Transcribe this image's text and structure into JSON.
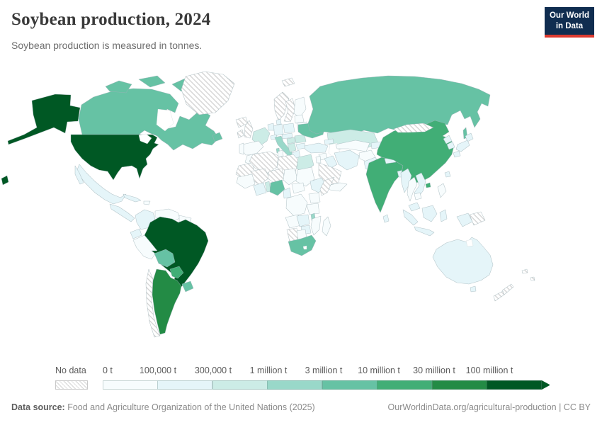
{
  "header": {
    "title": "Soybean production, 2024",
    "subtitle": "Soybean production is measured in tonnes."
  },
  "logo": {
    "line1": "Our World",
    "line2": "in Data",
    "bg": "#102d50",
    "accent": "#dc3a2f"
  },
  "legend": {
    "no_data_label": "No data",
    "stops": [
      "0 t",
      "100,000 t",
      "300,000 t",
      "1 million t",
      "3 million t",
      "10 million t",
      "30 million t",
      "100 million t"
    ],
    "palette": [
      "#f7fcfd",
      "#e5f5f9",
      "#ccece6",
      "#99d8c9",
      "#66c2a4",
      "#41ae76",
      "#238b45",
      "#005824"
    ]
  },
  "footer": {
    "source_label": "Data source:",
    "source_text": " Food and Agriculture Organization of the United Nations (2025)",
    "right_text": "OurWorldinData.org/agricultural-production | CC BY"
  },
  "chart_data": {
    "type": "heatmap",
    "subtype": "world-choropleth",
    "title": "Soybean production, 2024",
    "unit": "tonnes",
    "legend_position": "bottom",
    "bins": [
      "0 t–100,000 t",
      "100,000 t–300,000 t",
      "300,000 t–1 million t",
      "1–3 million t",
      "3–10 million t",
      "10–30 million t",
      "30–100 million t",
      "100 million t+",
      "No data"
    ],
    "countries_by_bin": {
      "100 million t+": [
        "United States",
        "Brazil"
      ],
      "30–100 million t": [
        "Argentina"
      ],
      "10–30 million t": [
        "China",
        "India",
        "Paraguay"
      ],
      "3–10 million t": [
        "Canada",
        "Russia",
        "Ukraine",
        "Bolivia",
        "Uruguay",
        "Nigeria",
        "South Africa"
      ],
      "1–3 million t": [
        "Italy",
        "Malawi"
      ],
      "300,000 t–1 million t": [
        "France",
        "Kazakhstan",
        "Egypt",
        "Romania",
        "Hungary",
        "Serbia",
        "Benin",
        "Togo"
      ],
      "100,000 t–300,000 t": [
        "Mexico",
        "Japan",
        "Turkey",
        "Iran",
        "Colombia",
        "Ecuador",
        "Cuba",
        "Germany",
        "Poland",
        "Greece",
        "Bulgaria",
        "Myanmar",
        "Vietnam",
        "North Korea",
        "South Korea",
        "Pakistan",
        "Nepal",
        "Bangladesh",
        "Sri Lanka",
        "Ethiopia",
        "Zambia",
        "Zimbabwe",
        "Ghana",
        "Cameroon",
        "Iraq",
        "Indonesia",
        "Malaysia",
        "Australia"
      ],
      "0 t–100,000 t": [
        "Finland",
        "Spain",
        "Portugal",
        "Belarus",
        "Venezuela",
        "Peru",
        "Guyana",
        "Thailand",
        "Cambodia",
        "Philippines",
        "Chad",
        "Sudan",
        "Dem. Rep. Congo",
        "Angola",
        "Tanzania",
        "Kenya",
        "Mozambique",
        "Botswana",
        "Madagascar",
        "Morocco",
        "Tunisia",
        "Syria",
        "Afghanistan",
        "Yemen",
        "Oman",
        "Turkmenistan",
        "Uzbekistan"
      ],
      "No data": [
        "Greenland",
        "Iceland",
        "Norway",
        "Sweden",
        "United Kingdom",
        "Ireland",
        "Svalbard",
        "Mongolia",
        "Chile",
        "Algeria",
        "Libya",
        "Mali",
        "Niger",
        "Mauritania",
        "Western Sahara",
        "Somalia",
        "Saudi Arabia",
        "Namibia",
        "Papua New Guinea",
        "New Zealand",
        "New Caledonia",
        "Fiji"
      ]
    }
  },
  "map": {
    "fills": {
      "united-states": 7,
      "brazil": 7,
      "argentina": 6,
      "china": 5,
      "india": 5,
      "paraguay": 5,
      "canada": 4,
      "russia": 4,
      "ukraine": 4,
      "bolivia": 4,
      "uruguay": 4,
      "nigeria": 4,
      "south-africa": 4,
      "italy": 3,
      "malawi": 3,
      "france": 2,
      "kazakhstan": 2,
      "egypt": 2,
      "romania": 2,
      "hungary": 2,
      "balkans-serbia": 2,
      "togo-benin": 2,
      "mexico": 1,
      "central-america": 1,
      "cuba": 1,
      "colombia": 1,
      "ecuador": 1,
      "germany": 1,
      "poland": 1,
      "denmark": 1,
      "benelux": 1,
      "switzerland": 1,
      "austria-czech": 1,
      "greece": 1,
      "bulgaria": 1,
      "turkey": 1,
      "caucasus": 1,
      "iraq": 1,
      "iran": 1,
      "pakistan": 1,
      "kyrgyz-tajik": 1,
      "nepal": 1,
      "bangladesh": 1,
      "sri-lanka": 1,
      "myanmar": 1,
      "vietnam": 1,
      "north-korea": 1,
      "south-korea": 1,
      "japan": 1,
      "taiwan": 1,
      "malaysia": 1,
      "indonesia": 1,
      "ethiopia": 1,
      "zambia": 1,
      "zimbabwe": 1,
      "ivory-ghana": 1,
      "cameroon": 1,
      "australia": 1,
      "finland": 0,
      "baltics": 0,
      "belarus": 0,
      "iberia": 0,
      "portugal": 0,
      "venezuela": 0,
      "guyanas": 0,
      "peru": 0,
      "hispaniola": 0,
      "thailand": 0,
      "cambodia": 0,
      "philippines": 0,
      "chad": 0,
      "sudan": 0,
      "car": 0,
      "drc": 0,
      "uganda-kenya": 0,
      "tanzania": 0,
      "angola": 0,
      "mozambique": 0,
      "botswana": 0,
      "madagascar": 0,
      "morocco": 0,
      "tunisia": 0,
      "syria": 0,
      "jordan": 0,
      "afghanistan": 0,
      "yemen-oman": 0,
      "turkmen-uzbek": 0,
      "senegal-guinea": 0,
      "greenland": "nd",
      "iceland": "nd",
      "norway": "nd",
      "sweden": "nd",
      "uk": "nd",
      "ireland": "nd",
      "svalbard": "nd",
      "mongolia": "nd",
      "chile": "nd",
      "algeria": "nd",
      "libya": "nd",
      "mali": "nd",
      "niger": "nd",
      "western-sahara-mauritania": "nd",
      "somalia": "nd",
      "saudi-arabia": "nd",
      "namibia": "nd",
      "papua-new-guinea": "nd",
      "new-zealand": "nd",
      "new-caledonia": "nd",
      "fiji": "nd"
    }
  }
}
